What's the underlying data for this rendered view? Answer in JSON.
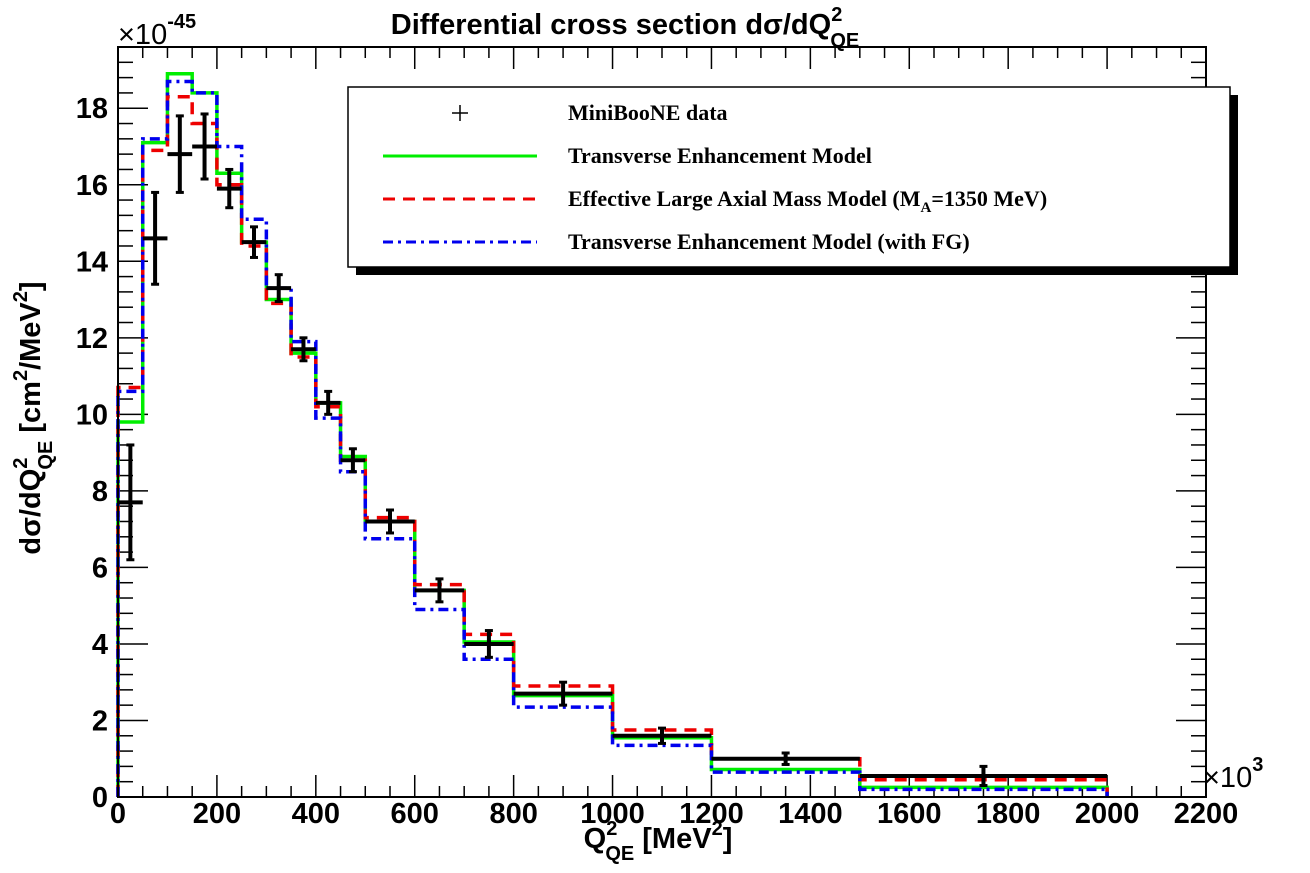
{
  "chart_data": {
    "type": "line",
    "title": "Differential cross section dσ/dQ",
    "title_sup": "2",
    "title_sub": "QE",
    "ylabel_main": "dσ/dQ",
    "ylabel_sup": "2",
    "ylabel_sub": "QE",
    "ylabel_unit": " [cm",
    "ylabel_unit_sup": "2",
    "ylabel_unit_tail": "/MeV",
    "ylabel_unit_sup2": "2",
    "ylabel_close": "]",
    "xlabel_main": "Q",
    "xlabel_sup": "2",
    "xlabel_sub": "QE",
    "xlabel_unit": " [MeV",
    "xlabel_unit_sup": "2",
    "xlabel_close": "]",
    "x_multiplier_prefix": "×10",
    "x_multiplier_exp": "3",
    "y_multiplier_prefix": "×10",
    "y_multiplier_exp": "-45",
    "xlim": [
      0,
      2200
    ],
    "ylim": [
      0,
      19.6
    ],
    "x_ticks": [
      0,
      200,
      400,
      600,
      800,
      1000,
      1200,
      1400,
      1600,
      1800,
      2000,
      2200
    ],
    "y_ticks": [
      0,
      2,
      4,
      6,
      8,
      10,
      12,
      14,
      16,
      18
    ],
    "grid": false,
    "legend_position": "top-right",
    "bin_edges": [
      0,
      50,
      100,
      150,
      200,
      250,
      300,
      350,
      400,
      450,
      500,
      600,
      700,
      800,
      1000,
      1200,
      1500,
      2000
    ],
    "data_points": {
      "name": "MiniBooNE data",
      "color": "#000000",
      "x": [
        25,
        75,
        125,
        175,
        225,
        275,
        325,
        375,
        425,
        475,
        550,
        650,
        750,
        900,
        1100,
        1350,
        1750
      ],
      "y": [
        7.7,
        14.6,
        16.8,
        17.0,
        15.9,
        14.5,
        13.3,
        11.7,
        10.3,
        8.8,
        7.2,
        5.4,
        4.0,
        2.7,
        1.6,
        1.0,
        0.55
      ],
      "yerr": [
        1.5,
        1.2,
        1.0,
        0.85,
        0.5,
        0.4,
        0.35,
        0.3,
        0.3,
        0.3,
        0.3,
        0.3,
        0.35,
        0.3,
        0.2,
        0.15,
        0.25
      ]
    },
    "series": [
      {
        "name": "Transverse Enhancement Model",
        "color": "#00ee00",
        "dash": "solid",
        "values": [
          9.8,
          17.1,
          18.9,
          18.4,
          16.3,
          14.5,
          13.0,
          11.6,
          10.3,
          8.9,
          7.2,
          5.4,
          4.05,
          2.65,
          1.55,
          0.72,
          0.25
        ]
      },
      {
        "name": "Effective Large Axial Mass Model (M",
        "name_sub": "A",
        "name_tail": "=1350 MeV)",
        "color": "#ee0000",
        "dash": "dashed",
        "values": [
          10.7,
          16.9,
          18.3,
          17.6,
          16.0,
          14.4,
          12.9,
          11.5,
          10.2,
          8.8,
          7.3,
          5.55,
          4.25,
          2.9,
          1.75,
          1.0,
          0.45
        ]
      },
      {
        "name": "Transverse Enhancement Model (with FG)",
        "color": "#0000ee",
        "dash": "dashdot",
        "values": [
          10.6,
          17.2,
          18.7,
          18.4,
          17.0,
          15.1,
          13.3,
          11.9,
          9.9,
          8.5,
          6.75,
          4.9,
          3.6,
          2.35,
          1.35,
          0.65,
          0.2
        ]
      }
    ]
  }
}
